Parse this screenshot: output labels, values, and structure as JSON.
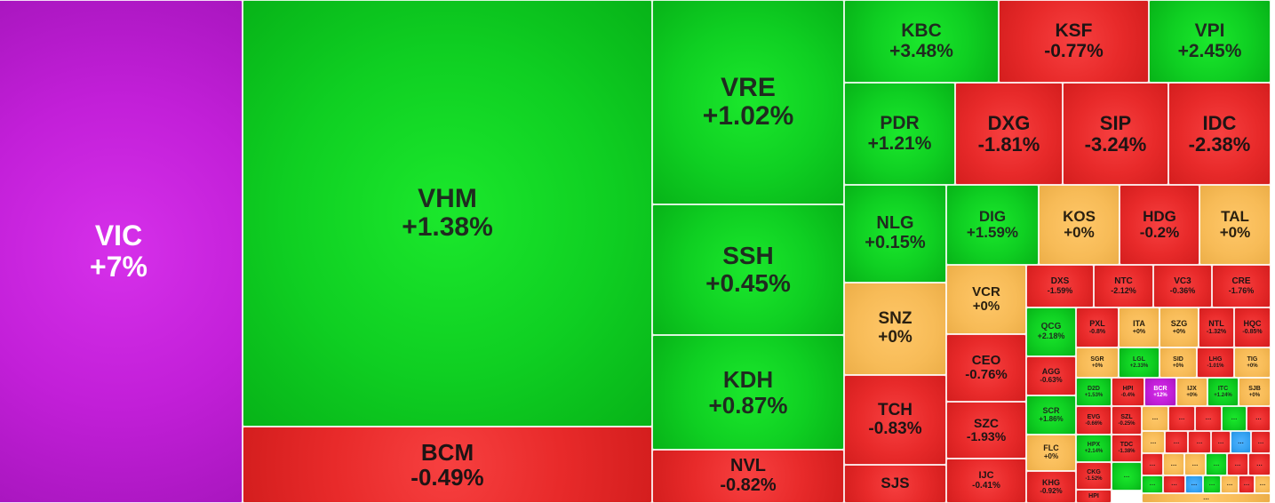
{
  "chart_data": {
    "type": "treemap",
    "title": "",
    "colors": {
      "up": "#11d923",
      "down": "#ea2b2b",
      "reference": "#f6bb58",
      "ceiling": "#c61fdc",
      "floor": "#38a4f2"
    },
    "tiles": [
      {
        "symbol": "VIC",
        "change": "+7%",
        "status": "ceiling"
      },
      {
        "symbol": "VHM",
        "change": "+1.38%",
        "status": "up"
      },
      {
        "symbol": "BCM",
        "change": "-0.49%",
        "status": "down"
      },
      {
        "symbol": "VRE",
        "change": "+1.02%",
        "status": "up"
      },
      {
        "symbol": "SSH",
        "change": "+0.45%",
        "status": "up"
      },
      {
        "symbol": "KDH",
        "change": "+0.87%",
        "status": "up"
      },
      {
        "symbol": "NVL",
        "change": "-0.82%",
        "status": "down"
      },
      {
        "symbol": "KBC",
        "change": "+3.48%",
        "status": "up"
      },
      {
        "symbol": "KSF",
        "change": "-0.77%",
        "status": "down"
      },
      {
        "symbol": "VPI",
        "change": "+2.45%",
        "status": "up"
      },
      {
        "symbol": "PDR",
        "change": "+1.21%",
        "status": "up"
      },
      {
        "symbol": "DXG",
        "change": "-1.81%",
        "status": "down"
      },
      {
        "symbol": "SIP",
        "change": "-3.24%",
        "status": "down"
      },
      {
        "symbol": "IDC",
        "change": "-2.38%",
        "status": "down"
      },
      {
        "symbol": "NLG",
        "change": "+0.15%",
        "status": "up"
      },
      {
        "symbol": "DIG",
        "change": "+1.59%",
        "status": "up"
      },
      {
        "symbol": "KOS",
        "change": "+0%",
        "status": "reference"
      },
      {
        "symbol": "HDG",
        "change": "-0.2%",
        "status": "down"
      },
      {
        "symbol": "TAL",
        "change": "+0%",
        "status": "reference"
      },
      {
        "symbol": "SNZ",
        "change": "+0%",
        "status": "reference"
      },
      {
        "symbol": "VCR",
        "change": "+0%",
        "status": "reference"
      },
      {
        "symbol": "TCH",
        "change": "-0.83%",
        "status": "down"
      },
      {
        "symbol": "CEO",
        "change": "-0.76%",
        "status": "down"
      },
      {
        "symbol": "SZC",
        "change": "-1.93%",
        "status": "down"
      },
      {
        "symbol": "IJC",
        "change": "-0.41%",
        "status": "down"
      },
      {
        "symbol": "SJS",
        "change": "",
        "status": "down"
      },
      {
        "symbol": "DXS",
        "change": "-1.59%",
        "status": "down"
      },
      {
        "symbol": "NTC",
        "change": "-2.12%",
        "status": "down"
      },
      {
        "symbol": "VC3",
        "change": "-0.36%",
        "status": "down"
      },
      {
        "symbol": "CRE",
        "change": "-1.76%",
        "status": "down"
      },
      {
        "symbol": "QCG",
        "change": "+2.18%",
        "status": "up"
      },
      {
        "symbol": "AGG",
        "change": "-0.63%",
        "status": "down"
      },
      {
        "symbol": "SCR",
        "change": "+1.86%",
        "status": "up"
      },
      {
        "symbol": "FLC",
        "change": "+0%",
        "status": "reference"
      },
      {
        "symbol": "KHG",
        "change": "-0.92%",
        "status": "down"
      },
      {
        "symbol": "PXL",
        "change": "-0.8%",
        "status": "down"
      },
      {
        "symbol": "ITA",
        "change": "+0%",
        "status": "reference"
      },
      {
        "symbol": "SZG",
        "change": "+0%",
        "status": "reference"
      },
      {
        "symbol": "NTL",
        "change": "-1.32%",
        "status": "down"
      },
      {
        "symbol": "HQC",
        "change": "-0.85%",
        "status": "down"
      },
      {
        "symbol": "SGR",
        "change": "+0%",
        "status": "reference"
      },
      {
        "symbol": "LGL",
        "change": "+2.33%",
        "status": "up"
      },
      {
        "symbol": "SID",
        "change": "+0%",
        "status": "reference"
      },
      {
        "symbol": "LHG",
        "change": "-1.01%",
        "status": "down"
      },
      {
        "symbol": "TIG",
        "change": "+0%",
        "status": "reference"
      },
      {
        "symbol": "D2D",
        "change": "+1.53%",
        "status": "up"
      },
      {
        "symbol": "HPI",
        "change": "-0.4%",
        "status": "down"
      },
      {
        "symbol": "BCR",
        "change": "+12%",
        "status": "ceiling"
      },
      {
        "symbol": "IJX",
        "change": "+0%",
        "status": "reference"
      },
      {
        "symbol": "ITC",
        "change": "+1.24%",
        "status": "up"
      },
      {
        "symbol": "SJB",
        "change": "+0%",
        "status": "reference"
      },
      {
        "symbol": "EVG",
        "change": "-0.66%",
        "status": "down"
      },
      {
        "symbol": "SZL",
        "change": "-0.25%",
        "status": "down"
      },
      {
        "symbol": "HPX",
        "change": "+2.14%",
        "status": "up"
      },
      {
        "symbol": "TDC",
        "change": "-1.38%",
        "status": "down"
      },
      {
        "symbol": "CKG",
        "change": "-1.52%",
        "status": "down"
      },
      {
        "symbol": "HPI",
        "change": "",
        "status": "down"
      },
      {
        "symbol": "…",
        "change": "",
        "status": "reference"
      },
      {
        "symbol": "…",
        "change": "",
        "status": "down"
      },
      {
        "symbol": "…",
        "change": "",
        "status": "down"
      },
      {
        "symbol": "…",
        "change": "",
        "status": "up"
      },
      {
        "symbol": "…",
        "change": "",
        "status": "down"
      },
      {
        "symbol": "…",
        "change": "",
        "status": "reference"
      },
      {
        "symbol": "…",
        "change": "",
        "status": "down"
      },
      {
        "symbol": "…",
        "change": "",
        "status": "down"
      },
      {
        "symbol": "…",
        "change": "",
        "status": "down"
      },
      {
        "symbol": "…",
        "change": "",
        "status": "floor"
      },
      {
        "symbol": "…",
        "change": "",
        "status": "down"
      },
      {
        "symbol": "…",
        "change": "",
        "status": "up"
      },
      {
        "symbol": "…",
        "change": "",
        "status": "down"
      },
      {
        "symbol": "…",
        "change": "",
        "status": "reference"
      },
      {
        "symbol": "…",
        "change": "",
        "status": "reference"
      },
      {
        "symbol": "…",
        "change": "",
        "status": "up"
      },
      {
        "symbol": "…",
        "change": "",
        "status": "down"
      },
      {
        "symbol": "…",
        "change": "",
        "status": "down"
      },
      {
        "symbol": "…",
        "change": "",
        "status": "up"
      },
      {
        "symbol": "…",
        "change": "",
        "status": "down"
      },
      {
        "symbol": "…",
        "change": "",
        "status": "floor"
      },
      {
        "symbol": "…",
        "change": "",
        "status": "up"
      },
      {
        "symbol": "…",
        "change": "",
        "status": "reference"
      },
      {
        "symbol": "…",
        "change": "",
        "status": "down"
      },
      {
        "symbol": "…",
        "change": "",
        "status": "reference"
      },
      {
        "symbol": "…",
        "change": "",
        "status": "reference"
      }
    ]
  }
}
